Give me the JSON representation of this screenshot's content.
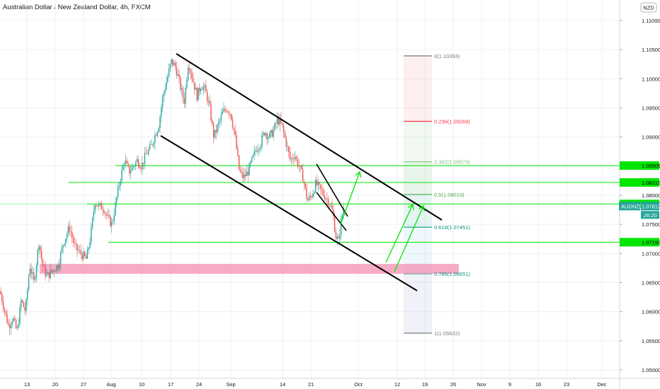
{
  "header": {
    "title": "Australian Dollar / New Zealand Dollar, 4h, FXCM"
  },
  "axis": {
    "currency": "NZD"
  },
  "colors": {
    "up": "#26a69a",
    "down": "#ef5350",
    "hline": "#00e600",
    "channel": "#000000",
    "zone": "#f48fb1",
    "grid": "#eef0f3"
  },
  "chart_data": {
    "type": "candlestick",
    "title": "Australian Dollar / New Zealand Dollar, 4h, FXCM",
    "symbol": "AUDNZD",
    "ylim": [
      1.047,
      1.113
    ],
    "y_ticks": [
      "1.11000",
      "1.10500",
      "1.10000",
      "1.09500",
      "1.09000",
      "1.08500",
      "1.08000",
      "1.07500",
      "1.07000",
      "1.06500",
      "1.06000",
      "1.05500",
      "1.05000"
    ],
    "y_tick_values": [
      1.11,
      1.105,
      1.1,
      1.095,
      1.09,
      1.085,
      1.08,
      1.075,
      1.07,
      1.065,
      1.06,
      1.055,
      1.05
    ],
    "x_ticks": [
      "13",
      "20",
      "27",
      "Aug",
      "10",
      "17",
      "24",
      "Sep",
      "14",
      "21",
      "Oct",
      "12",
      "19",
      "26",
      "Nov",
      "9",
      "16",
      "23",
      "Dec"
    ],
    "price_path": [
      [
        -2,
        1.0645
      ],
      [
        6,
        1.0605
      ],
      [
        12,
        1.0575
      ],
      [
        18,
        1.059
      ],
      [
        24,
        1.0565
      ],
      [
        30,
        1.062
      ],
      [
        36,
        1.06
      ],
      [
        42,
        1.068
      ],
      [
        48,
        1.065
      ],
      [
        55,
        1.072
      ],
      [
        60,
        1.068
      ],
      [
        66,
        1.066
      ],
      [
        74,
        1.067
      ],
      [
        82,
        1.068
      ],
      [
        90,
        1.072
      ],
      [
        98,
        1.0745
      ],
      [
        106,
        1.071
      ],
      [
        114,
        1.07
      ],
      [
        122,
        1.069
      ],
      [
        128,
        1.073
      ],
      [
        134,
        1.079
      ],
      [
        140,
        1.078
      ],
      [
        146,
        1.078
      ],
      [
        152,
        1.076
      ],
      [
        158,
        1.075
      ],
      [
        164,
        1.079
      ],
      [
        170,
        1.083
      ],
      [
        176,
        1.086
      ],
      [
        182,
        1.084
      ],
      [
        188,
        1.085
      ],
      [
        194,
        1.086
      ],
      [
        200,
        1.085
      ],
      [
        206,
        1.087
      ],
      [
        212,
        1.088
      ],
      [
        218,
        1.09
      ],
      [
        224,
        1.092
      ],
      [
        230,
        1.097
      ],
      [
        236,
        1.1
      ],
      [
        242,
        1.103
      ],
      [
        248,
        1.102
      ],
      [
        254,
        1.099
      ],
      [
        260,
        1.096
      ],
      [
        266,
        1.103
      ],
      [
        272,
        1.1
      ],
      [
        278,
        1.097
      ],
      [
        284,
        1.099
      ],
      [
        290,
        1.098
      ],
      [
        296,
        1.095
      ],
      [
        302,
        1.09
      ],
      [
        308,
        1.092
      ],
      [
        314,
        1.094
      ],
      [
        320,
        1.095
      ],
      [
        326,
        1.094
      ],
      [
        332,
        1.09
      ],
      [
        338,
        1.084
      ],
      [
        344,
        1.083
      ],
      [
        350,
        1.084
      ],
      [
        356,
        1.086
      ],
      [
        362,
        1.088
      ],
      [
        368,
        1.089
      ],
      [
        374,
        1.091
      ],
      [
        380,
        1.09
      ],
      [
        386,
        1.091
      ],
      [
        392,
        1.093
      ],
      [
        398,
        1.092
      ],
      [
        404,
        1.089
      ],
      [
        410,
        1.086
      ],
      [
        416,
        1.087
      ],
      [
        422,
        1.085
      ],
      [
        428,
        1.083
      ],
      [
        434,
        1.079
      ],
      [
        440,
        1.08
      ],
      [
        446,
        1.082
      ],
      [
        452,
        1.081
      ],
      [
        458,
        1.08
      ],
      [
        464,
        1.079
      ],
      [
        470,
        1.077
      ],
      [
        474,
        1.073
      ],
      [
        478,
        1.072
      ],
      [
        482,
        1.076
      ],
      [
        486,
        1.0781
      ]
    ],
    "levels": [
      {
        "label": "1.08509",
        "value": 1.08509
      },
      {
        "label": "1.08219",
        "value": 1.08219
      },
      {
        "label": "1.07850",
        "value": 1.0785
      },
      {
        "label": "1.07193",
        "value": 1.07193
      }
    ],
    "current": {
      "label": "AUDNZD",
      "price": "1.07813",
      "countdown": "26:20",
      "value": 1.07813
    },
    "fib_levels": [
      {
        "label": "0(1.10393)",
        "value": 1.10393,
        "color": "#787b86"
      },
      {
        "label": "0.236(1.09269)",
        "value": 1.09269,
        "color": "#f23645"
      },
      {
        "label": "0.382(1.08574)",
        "value": 1.08574,
        "color": "#81c784"
      },
      {
        "label": "0.5(1.08013)",
        "value": 1.08013,
        "color": "#4caf50"
      },
      {
        "label": "0.618(1.07451)",
        "value": 1.07451,
        "color": "#089981"
      },
      {
        "label": "0.786(1.06651)",
        "value": 1.06651,
        "color": "#089981"
      },
      {
        "label": "1(1.05632)",
        "value": 1.05632,
        "color": "#787b86"
      }
    ]
  }
}
